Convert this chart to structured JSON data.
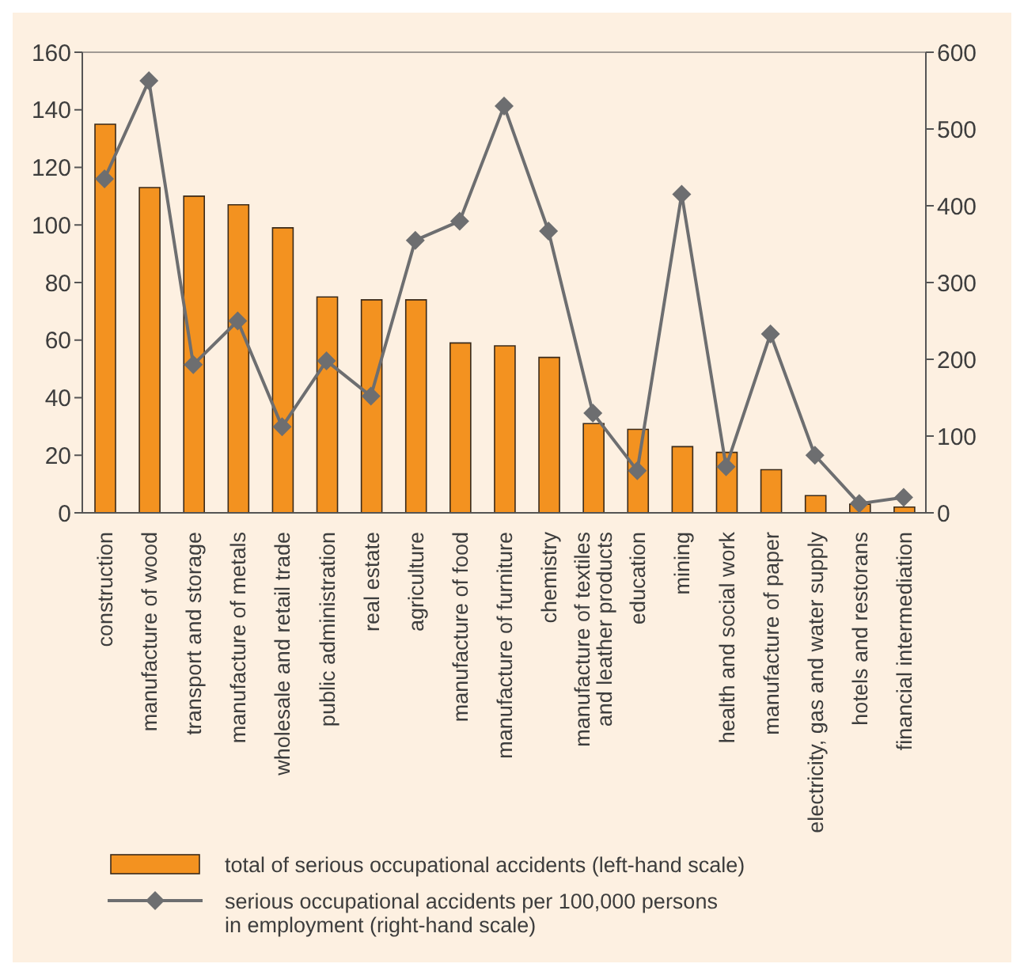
{
  "chart_data": {
    "type": "bar",
    "categories": [
      "construction",
      "manufacture of wood",
      "transport and storage",
      "manufacture of metals",
      "wholesale and retail trade",
      "public administration",
      "real estate",
      "agriculture",
      "manufacture of food",
      "manufacture of furniture",
      "chemistry",
      "manufacture of textiles\nand leather products",
      "education",
      "mining",
      "health and social work",
      "manufacture of paper",
      "electricity, gas and water supply",
      "hotels and restorans",
      "financial intermediation"
    ],
    "series": [
      {
        "name": "total of serious occupational accidents (left-hand scale)",
        "color": "#f39220",
        "values": [
          135,
          113,
          110,
          107,
          99,
          75,
          74,
          74,
          59,
          58,
          54,
          31,
          29,
          23,
          21,
          15,
          6,
          3,
          2
        ]
      },
      {
        "name": "serious occupational accidents per 100,000 persons\nin employment (right-hand scale)",
        "type": "line",
        "axis": "y2",
        "color": "#6d6e70",
        "values": [
          435,
          563,
          193,
          250,
          112,
          198,
          152,
          355,
          380,
          530,
          367,
          130,
          55,
          415,
          60,
          233,
          75,
          12,
          20
        ]
      }
    ],
    "ylim": [
      0,
      160
    ],
    "yticks": [
      0,
      20,
      40,
      60,
      80,
      100,
      120,
      140,
      160
    ],
    "y2lim": [
      0,
      600
    ],
    "y2ticks": [
      0,
      100,
      200,
      300,
      400,
      500,
      600
    ],
    "marker": "diamond",
    "grid": false,
    "legend": "bottom"
  }
}
